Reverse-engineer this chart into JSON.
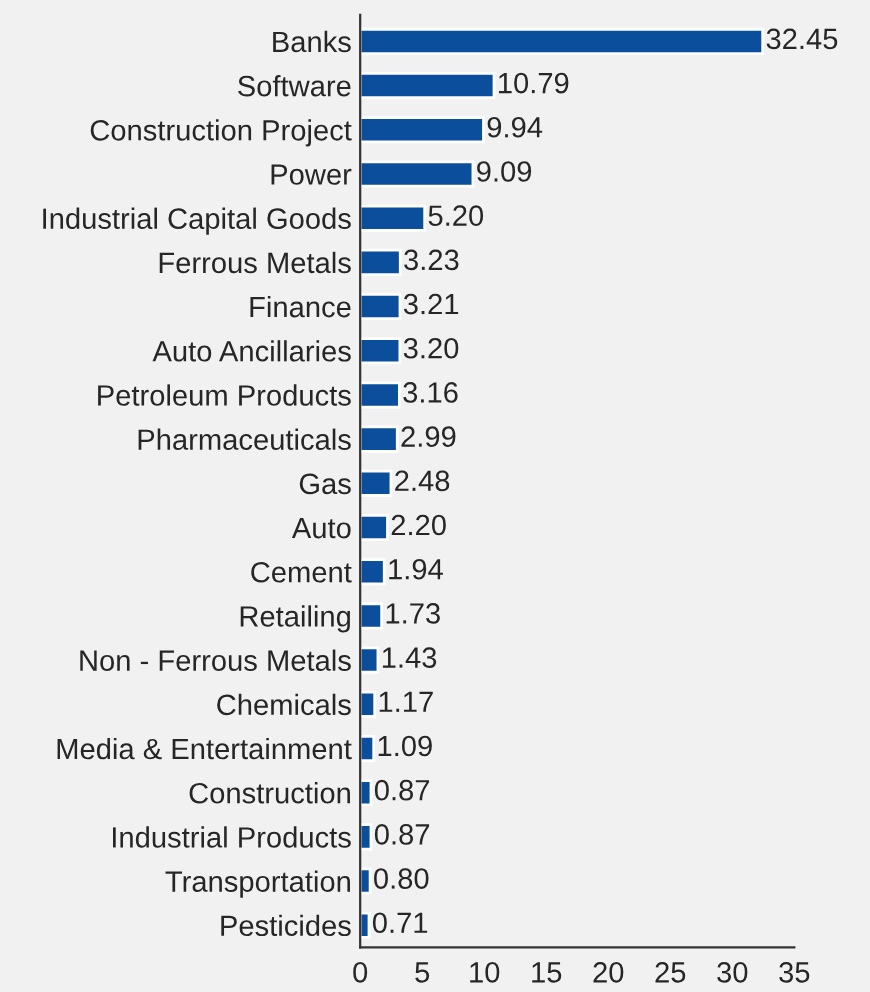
{
  "chart_data": {
    "type": "bar",
    "orientation": "horizontal",
    "categories": [
      "Banks",
      "Software",
      "Construction Project",
      "Power",
      "Industrial Capital Goods",
      "Ferrous Metals",
      "Finance",
      "Auto Ancillaries",
      "Petroleum Products",
      "Pharmaceuticals",
      "Gas",
      "Auto",
      "Cement",
      "Retailing",
      "Non - Ferrous Metals",
      "Chemicals",
      "Media & Entertainment",
      "Construction",
      "Industrial Products",
      "Transportation",
      "Pesticides"
    ],
    "values": [
      32.45,
      10.79,
      9.94,
      9.09,
      5.2,
      3.23,
      3.21,
      3.2,
      3.16,
      2.99,
      2.48,
      2.2,
      1.94,
      1.73,
      1.43,
      1.17,
      1.09,
      0.87,
      0.87,
      0.8,
      0.71
    ],
    "value_labels": [
      "32.45",
      "10.79",
      "9.94",
      "9.09",
      "5.20",
      "3.23",
      "3.21",
      "3.20",
      "3.16",
      "2.99",
      "2.48",
      "2.20",
      "1.94",
      "1.73",
      "1.43",
      "1.17",
      "1.09",
      "0.87",
      "0.87",
      "0.80",
      "0.71"
    ],
    "color": "#0b4f9c",
    "xlim": [
      0,
      35
    ],
    "xticks": [
      0,
      5,
      10,
      15,
      20,
      25,
      30,
      35
    ],
    "grid": false,
    "legend": false
  }
}
